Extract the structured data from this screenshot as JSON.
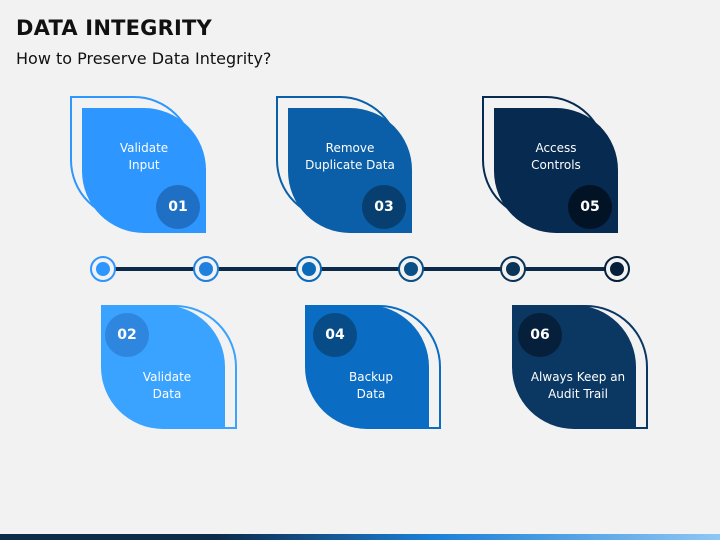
{
  "header": {
    "title": "DATA INTEGRITY",
    "subtitle": "How to Preserve Data Integrity?"
  },
  "steps": [
    {
      "num": "01",
      "label_line1": "Validate",
      "label_line2": "Input",
      "fill": "#2e96ff",
      "outline": "#2e96ff",
      "badge": "#1f6fc4"
    },
    {
      "num": "02",
      "label_line1": "Validate",
      "label_line2": "Data",
      "fill": "#3aa3ff",
      "outline": "#3aa3ff",
      "badge": "#2f86de"
    },
    {
      "num": "03",
      "label_line1": "Remove",
      "label_line2": "Duplicate Data",
      "fill": "#0b5fa8",
      "outline": "#0b5fa8",
      "badge": "#073f70"
    },
    {
      "num": "04",
      "label_line1": "Backup",
      "label_line2": "Data",
      "fill": "#0a6cc2",
      "outline": "#0a6cc2",
      "badge": "#074b87"
    },
    {
      "num": "05",
      "label_line1": "Access",
      "label_line2": "Controls",
      "fill": "#062a50",
      "outline": "#062a50",
      "badge": "#021326"
    },
    {
      "num": "06",
      "label_line1": "Always Keep an",
      "label_line2": "Audit Trail",
      "fill": "#0b3763",
      "outline": "#0b3763",
      "badge": "#061f3b"
    }
  ],
  "timeline_colors": [
    "#2e96ff",
    "#1f80e0",
    "#0b6ab8",
    "#0a4f86",
    "#0a3358",
    "#061f3b"
  ]
}
